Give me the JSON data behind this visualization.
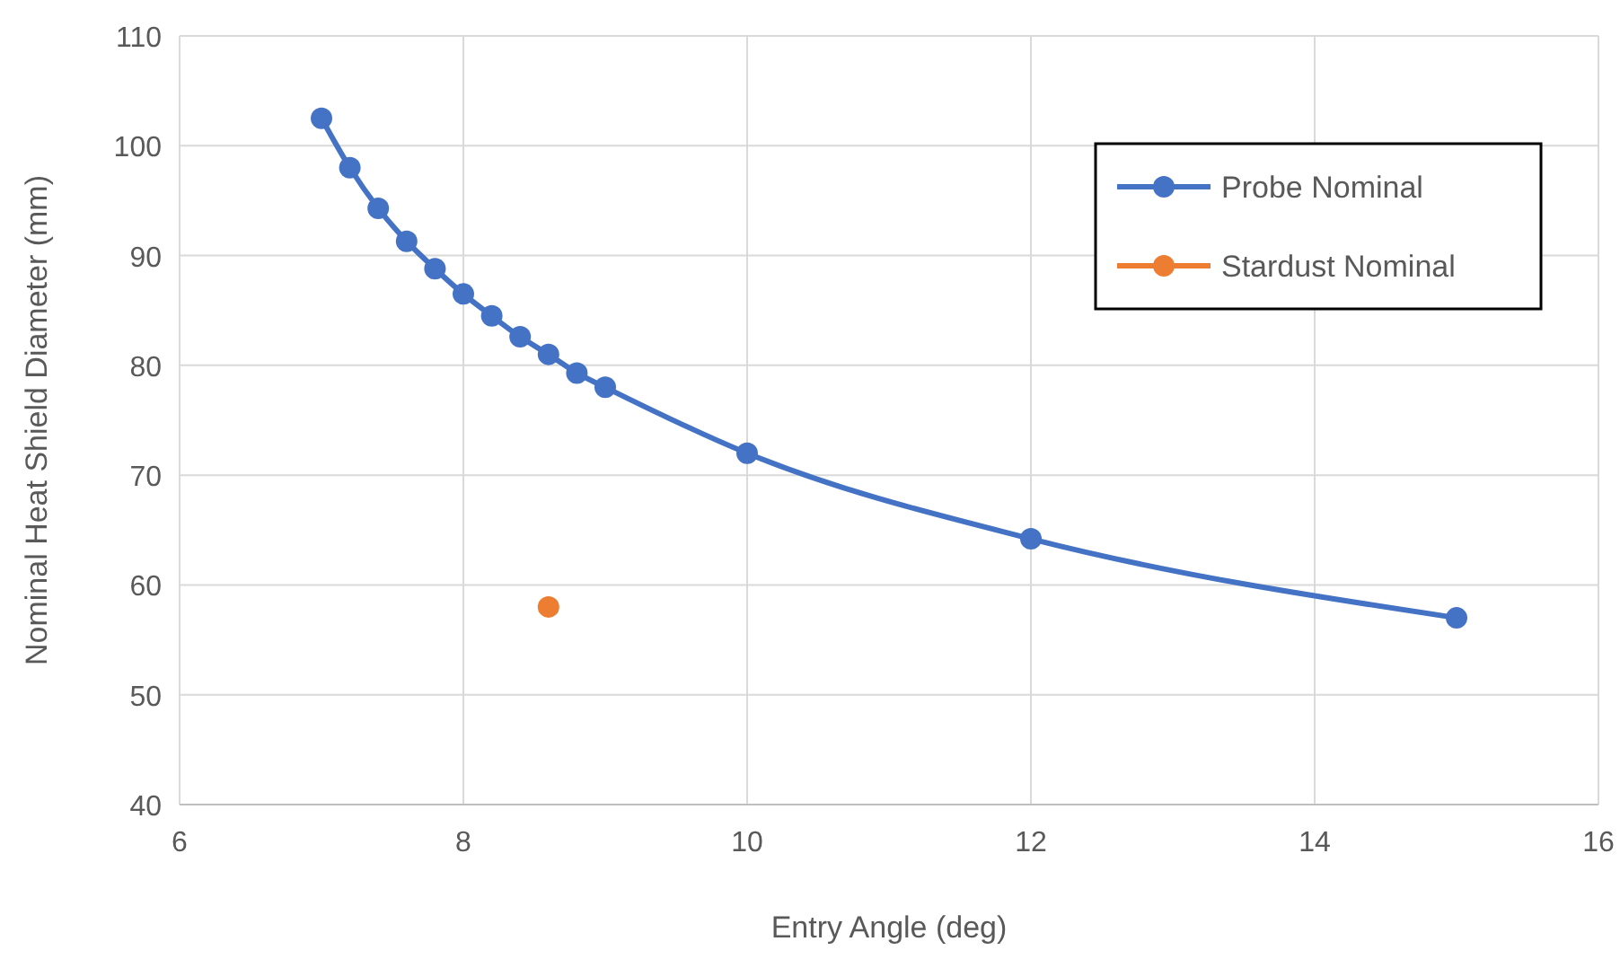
{
  "chart_data": {
    "type": "line",
    "xlabel": "Entry Angle (deg)",
    "ylabel": "Nominal Heat Shield Diameter (mm)",
    "xlim": [
      6,
      16
    ],
    "xticks": [
      6,
      8,
      10,
      12,
      14,
      16
    ],
    "ylim": [
      40,
      110
    ],
    "yticks": [
      40,
      50,
      60,
      70,
      80,
      90,
      100,
      110
    ],
    "grid": true,
    "legend": "top right",
    "marker": "circle",
    "series": [
      {
        "name": "Probe Nominal",
        "color": "#4472c4",
        "x": [
          7,
          7.2,
          7.4,
          7.6,
          7.8,
          8,
          8.2,
          8.4,
          8.6,
          8.8,
          9,
          10,
          12,
          15
        ],
        "values": [
          102.5,
          98,
          94.3,
          91.3,
          88.8,
          86.5,
          84.5,
          82.6,
          81,
          79.3,
          78,
          72,
          64.2,
          57
        ]
      },
      {
        "name": "Stardust Nominal",
        "type": "scatter",
        "color": "#ed7d31",
        "x": [
          8.6
        ],
        "values": [
          58
        ]
      }
    ]
  }
}
